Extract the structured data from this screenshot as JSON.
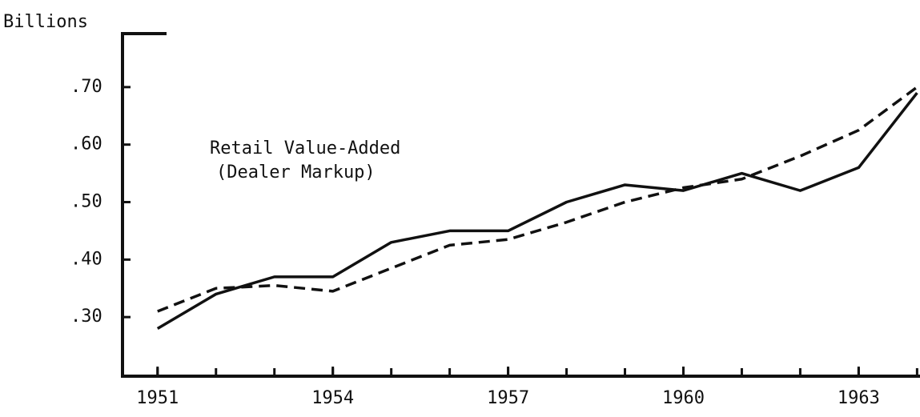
{
  "chart_data": {
    "type": "line",
    "y_label": "Billions",
    "annotation": [
      "Retail Value-Added",
      "(Dealer Markup)"
    ],
    "x": [
      1951,
      1952,
      1953,
      1954,
      1955,
      1956,
      1957,
      1958,
      1959,
      1960,
      1961,
      1962,
      1963,
      1964
    ],
    "xlim": [
      1950.4,
      1964.05
    ],
    "xticks": [
      1951,
      1954,
      1957,
      1960,
      1963
    ],
    "ylim": [
      0.2,
      0.8
    ],
    "yticks": [
      {
        "value": 0.3,
        "label": ".30"
      },
      {
        "value": 0.4,
        "label": ".40"
      },
      {
        "value": 0.5,
        "label": ".50"
      },
      {
        "value": 0.6,
        "label": ".60"
      },
      {
        "value": 0.7,
        "label": ".70"
      }
    ],
    "series": [
      {
        "color": "#111111",
        "dash": false,
        "values": [
          0.28,
          0.34,
          0.37,
          0.37,
          0.43,
          0.45,
          0.45,
          0.5,
          0.53,
          0.52,
          0.55,
          0.52,
          0.56,
          0.69
        ]
      },
      {
        "color": "#111111",
        "dash": true,
        "values": [
          0.31,
          0.35,
          0.355,
          0.345,
          0.385,
          0.425,
          0.435,
          0.465,
          0.5,
          0.525,
          0.54,
          0.58,
          0.625,
          0.7
        ]
      }
    ]
  }
}
